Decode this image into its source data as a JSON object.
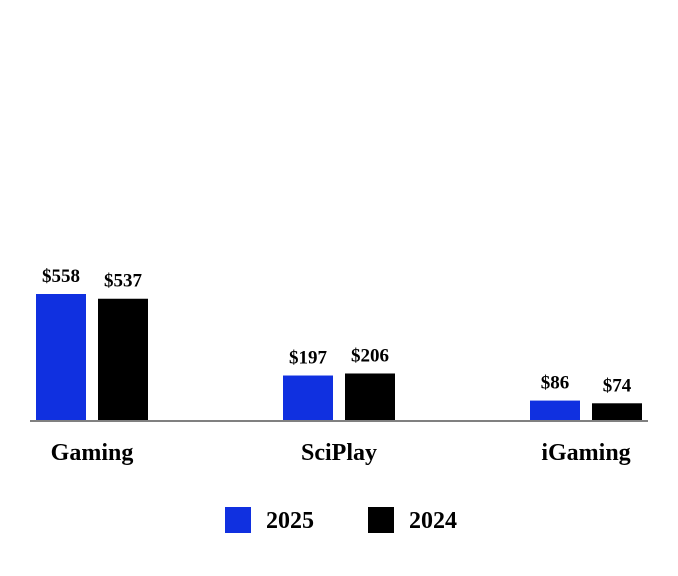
{
  "chart_data": {
    "type": "bar",
    "categories": [
      "Gaming",
      "SciPlay",
      "iGaming"
    ],
    "series": [
      {
        "name": "2025",
        "values": [
          558,
          197,
          86
        ],
        "labels": [
          "$558",
          "$197",
          "$86"
        ],
        "color": "#1030e0"
      },
      {
        "name": "2024",
        "values": [
          537,
          206,
          74
        ],
        "labels": [
          "$537",
          "$206",
          "$74"
        ],
        "color": "#000000"
      }
    ],
    "title": "",
    "xlabel": "",
    "ylabel": "",
    "ylim": [
      0,
      1000
    ],
    "grid": false,
    "legend_position": "bottom",
    "axis_color": "#808080"
  }
}
